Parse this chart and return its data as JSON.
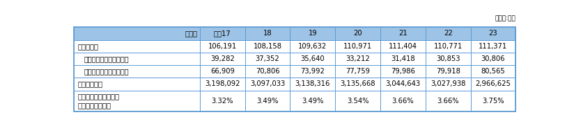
{
  "unit_label": "（単位:円）",
  "year_labels": [
    "平成17",
    "18",
    "19",
    "20",
    "21",
    "22",
    "23"
  ],
  "rows": [
    {
      "label": "電話通信料",
      "indent": 0,
      "values": [
        "106,191",
        "108,158",
        "109,632",
        "110,971",
        "111,404",
        "110,771",
        "111,371"
      ]
    },
    {
      "label": "（うち）固定電話通信料",
      "indent": 1,
      "values": [
        "39,282",
        "37,352",
        "35,640",
        "33,212",
        "31,418",
        "30,853",
        "30,806"
      ]
    },
    {
      "label": "（うち）移動電話通信料",
      "indent": 1,
      "values": [
        "66,909",
        "70,806",
        "73,992",
        "77,759",
        "79,986",
        "79,918",
        "80,565"
      ]
    },
    {
      "label": "世帯消費支出",
      "indent": 0,
      "values": [
        "3,198,092",
        "3,097,033",
        "3,138,316",
        "3,135,668",
        "3,044,643",
        "3,027,938",
        "2,966,625"
      ]
    },
    {
      "label": "世帯消費支出に占める\n電話通信料の割合",
      "indent": 0,
      "values": [
        "3.32%",
        "3.49%",
        "3.49%",
        "3.54%",
        "3.66%",
        "3.66%",
        "3.75%"
      ]
    }
  ],
  "header_bg": "#9dc3e6",
  "row_bg": "#ffffff",
  "border_color": "#5b9bd5",
  "text_color": "#000000",
  "figsize": [
    8.24,
    1.82
  ],
  "dpi": 100
}
